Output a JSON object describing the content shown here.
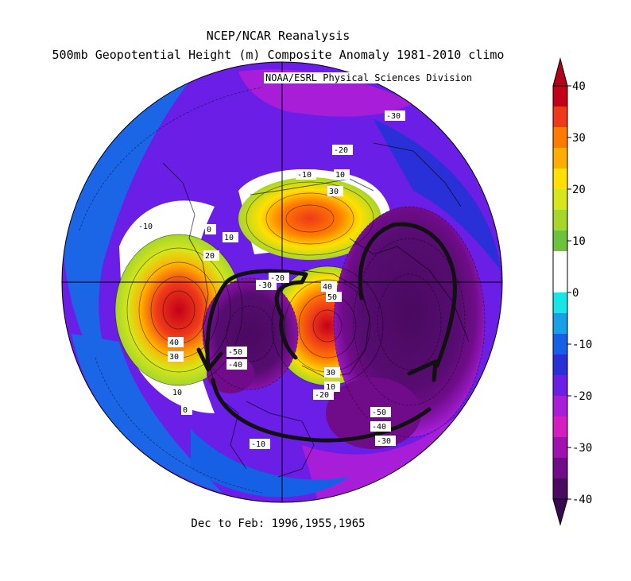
{
  "header": {
    "line1": "NCEP/NCAR Reanalysis",
    "line2": "500mb Geopotential Height (m) Composite Anomaly 1981-2010 climo",
    "credit": "NOAA/ESRL Physical Sciences Division"
  },
  "caption": "Dec to Feb: 1996,1955,1965",
  "colorbar": {
    "ticks": [
      "40",
      "30",
      "20",
      "10",
      "0",
      "-10",
      "-20",
      "-30",
      "-40"
    ],
    "bands": [
      "#c40018",
      "#ee3a1a",
      "#ff7a00",
      "#ffae00",
      "#ffe000",
      "#d6e61a",
      "#a6d62a",
      "#6cc23a",
      "#ffffff",
      "#ffffff",
      "#16e6e6",
      "#16a0e6",
      "#1660e6",
      "#2a30d8",
      "#6a1ee6",
      "#a81ed8",
      "#d61ec0",
      "#a012b0",
      "#700c8a",
      "#4a0a60"
    ]
  },
  "map_labels": [
    {
      "text": "-30"
    },
    {
      "text": "-20"
    },
    {
      "text": "-10"
    },
    {
      "text": "10"
    },
    {
      "text": "30"
    },
    {
      "text": "-10"
    },
    {
      "text": "0"
    },
    {
      "text": "10"
    },
    {
      "text": "20"
    },
    {
      "text": "-20"
    },
    {
      "text": "-30"
    },
    {
      "text": "40"
    },
    {
      "text": "50"
    },
    {
      "text": "40"
    },
    {
      "text": "30"
    },
    {
      "text": "10"
    },
    {
      "text": "0"
    },
    {
      "text": "-50"
    },
    {
      "text": "-40"
    },
    {
      "text": "30"
    },
    {
      "text": "10"
    },
    {
      "text": "-20"
    },
    {
      "text": "-50"
    },
    {
      "text": "-40"
    },
    {
      "text": "-30"
    },
    {
      "text": "-10"
    }
  ]
}
